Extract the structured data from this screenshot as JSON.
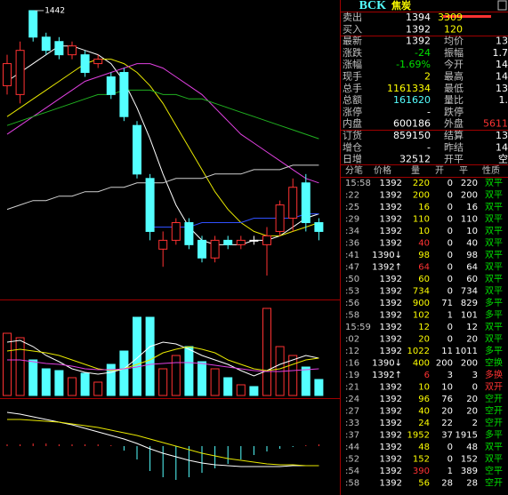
{
  "header": {
    "symbol": "BCK",
    "name": "焦炭"
  },
  "quote": {
    "rows": [
      {
        "label": "卖出",
        "value": 1394,
        "value2": 3309
      },
      {
        "label": "买入",
        "value": 1392,
        "value2": 120
      },
      {
        "label": "最新",
        "value": 1392,
        "label2": "均价",
        "value2": "13"
      },
      {
        "label": "涨跌",
        "value": -24,
        "label2": "振幅",
        "value2": "1.7"
      },
      {
        "label": "涨幅",
        "value": "-1.69%",
        "label2": "今开",
        "value2": "14"
      },
      {
        "label": "现手",
        "value": 2,
        "label2": "最高",
        "value2": "14"
      },
      {
        "label": "总手",
        "value": 1161334,
        "label2": "最低",
        "value2": "13"
      },
      {
        "label": "总额",
        "value": 161620,
        "label2": "量比",
        "value2": "1."
      },
      {
        "label": "涨停",
        "value": "-",
        "label2": "跌停"
      },
      {
        "label": "内盘",
        "value": 600186,
        "label2": "外盘",
        "value2": "5611"
      },
      {
        "label": "订货",
        "value": 859150,
        "label2": "结算",
        "value2": "13"
      },
      {
        "label": "增仓",
        "value": "-",
        "label2": "昨结",
        "value2": "14"
      },
      {
        "label": "日增",
        "value": 32512,
        "label2": "开平",
        "value2": "空"
      }
    ]
  },
  "ticks": {
    "columns": [
      "分笔",
      "价格",
      "量",
      "开",
      "平",
      "性质"
    ],
    "rows": [
      [
        "15:58",
        1392,
        220,
        0,
        220,
        "双平"
      ],
      [
        ":22",
        1392,
        200,
        0,
        200,
        "双平"
      ],
      [
        ":25",
        1392,
        16,
        0,
        16,
        "双平"
      ],
      [
        ":29",
        1392,
        110,
        0,
        110,
        "双平"
      ],
      [
        ":34",
        1392,
        10,
        0,
        10,
        "双平"
      ],
      [
        ":36",
        1392,
        40,
        0,
        40,
        "双平"
      ],
      [
        ":41",
        "1390↓",
        98,
        0,
        98,
        "双平"
      ],
      [
        ":47",
        "1392↑",
        64,
        0,
        64,
        "双平"
      ],
      [
        ":50",
        1392,
        60,
        0,
        60,
        "双平"
      ],
      [
        ":53",
        1392,
        734,
        0,
        734,
        "双平"
      ],
      [
        ":56",
        1392,
        900,
        71,
        829,
        "多平"
      ],
      [
        ":58",
        1392,
        102,
        1,
        101,
        "多平"
      ],
      [
        "15:59",
        1392,
        12,
        0,
        12,
        "双平"
      ],
      [
        ":02",
        1392,
        20,
        0,
        20,
        "双平"
      ],
      [
        ":12",
        1392,
        1022,
        11,
        1011,
        "多平"
      ],
      [
        ":16",
        "1390↓",
        400,
        200,
        200,
        "空换"
      ],
      [
        ":19",
        "1392↑",
        6,
        3,
        3,
        "多换"
      ],
      [
        ":21",
        1392,
        10,
        10,
        0,
        "双开"
      ],
      [
        ":24",
        1392,
        96,
        76,
        20,
        "空开"
      ],
      [
        ":27",
        1392,
        40,
        20,
        20,
        "空开"
      ],
      [
        ":33",
        1392,
        24,
        22,
        2,
        "空开"
      ],
      [
        ":37",
        1392,
        1952,
        37,
        1915,
        "多平"
      ],
      [
        ":44",
        1392,
        48,
        0,
        48,
        "双平"
      ],
      [
        ":52",
        1392,
        152,
        0,
        152,
        "双平"
      ],
      [
        ":54",
        1392,
        390,
        1,
        389,
        "空平"
      ],
      [
        ":58",
        1392,
        56,
        28,
        28,
        "空开"
      ]
    ]
  },
  "chart_data": [
    {
      "type": "candlestick",
      "ylim": [
        1377,
        1444
      ],
      "up_color": "#ff3232",
      "down_color": "#54ffff",
      "high_label": 1442,
      "open": [
        1425,
        1423,
        1442,
        1436,
        1435,
        1432,
        1432,
        1430,
        1427,
        1428,
        1416,
        1404,
        1388,
        1390,
        1394,
        1390,
        1386,
        1390,
        1389,
        1390,
        1389,
        1392,
        1395,
        1403,
        1394
      ],
      "high": [
        1432,
        1435,
        1442,
        1437,
        1436,
        1435,
        1433,
        1432,
        1428,
        1429,
        1417,
        1405,
        1392,
        1395,
        1395,
        1391,
        1391,
        1391,
        1391,
        1391,
        1393,
        1399,
        1404,
        1405,
        1395
      ],
      "low": [
        1423,
        1421,
        1435,
        1432,
        1431,
        1431,
        1427,
        1429,
        1422,
        1417,
        1404,
        1390,
        1384,
        1389,
        1388,
        1385,
        1385,
        1388,
        1388,
        1389,
        1382,
        1391,
        1392,
        1392,
        1390
      ],
      "close": [
        1430,
        1433,
        1436,
        1433,
        1432,
        1434,
        1428,
        1431,
        1423,
        1418,
        1405,
        1392,
        1390,
        1394,
        1389,
        1386,
        1390,
        1389,
        1390,
        1390,
        1391,
        1398,
        1402,
        1394,
        1392
      ],
      "lines": [
        {
          "color": "#ffffff",
          "values": [
            1426,
            1428,
            1430,
            1432,
            1434,
            1434,
            1433,
            1432,
            1430,
            1426,
            1420,
            1413,
            1405,
            1398,
            1393,
            1390,
            1389,
            1389,
            1389,
            1390,
            1390,
            1391,
            1393,
            1395,
            1396
          ]
        },
        {
          "color": "#e8e800",
          "values": [
            1418,
            1420,
            1422,
            1424,
            1426,
            1428,
            1430,
            1431,
            1431,
            1430,
            1428,
            1425,
            1421,
            1416,
            1411,
            1406,
            1401,
            1397,
            1394,
            1392,
            1391,
            1391,
            1392,
            1393,
            1394
          ]
        },
        {
          "color": "#e040e0",
          "values": [
            1414,
            1416,
            1418,
            1420,
            1422,
            1424,
            1426,
            1427,
            1428,
            1429,
            1430,
            1430,
            1429,
            1427,
            1425,
            1423,
            1420,
            1417,
            1414,
            1412,
            1410,
            1408,
            1406,
            1404,
            1403
          ]
        },
        {
          "color": "#20b020",
          "values": [
            1416,
            1417,
            1418,
            1419,
            1420,
            1421,
            1422,
            1423,
            1423,
            1424,
            1424,
            1424,
            1423,
            1423,
            1422,
            1422,
            1421,
            1420,
            1419,
            1418,
            1417,
            1416,
            1415,
            1414,
            1413
          ]
        },
        {
          "color": "#d0d0d0",
          "values": [
            1397,
            1398,
            1399,
            1399,
            1400,
            1400,
            1401,
            1401,
            1402,
            1402,
            1403,
            1403,
            1403,
            1404,
            1404,
            1404,
            1405,
            1405,
            1405,
            1406,
            1406,
            1406,
            1407,
            1407,
            1407
          ]
        },
        {
          "color": "#3050ff",
          "values": [
            null,
            null,
            null,
            null,
            null,
            null,
            null,
            null,
            null,
            null,
            null,
            1393,
            1393,
            1393,
            1393,
            1394,
            1394,
            1394,
            1394,
            1395,
            1395,
            1395,
            1395,
            1396,
            1396
          ]
        }
      ]
    },
    {
      "type": "volume",
      "ylim": [
        0,
        100
      ],
      "values": [
        70,
        65,
        40,
        30,
        28,
        20,
        25,
        15,
        35,
        50,
        88,
        88,
        30,
        45,
        55,
        38,
        30,
        20,
        12,
        10,
        98,
        55,
        45,
        32,
        18
      ],
      "lines": [
        {
          "color": "#ffffff",
          "values": [
            60,
            62,
            55,
            45,
            38,
            30,
            26,
            24,
            26,
            30,
            42,
            55,
            60,
            58,
            52,
            45,
            40,
            35,
            28,
            22,
            28,
            35,
            40,
            45,
            42
          ]
        },
        {
          "color": "#e8e800",
          "values": [
            50,
            52,
            50,
            48,
            45,
            40,
            35,
            30,
            28,
            30,
            35,
            40,
            48,
            52,
            55,
            52,
            48,
            40,
            35,
            30,
            28,
            30,
            35,
            40,
            42
          ]
        },
        {
          "color": "#e040e0",
          "values": [
            40,
            40,
            38,
            36,
            35,
            33,
            30,
            29,
            29,
            30,
            32,
            35,
            36,
            37,
            37,
            36,
            34,
            32,
            30,
            28,
            27,
            27,
            28,
            29,
            30
          ]
        }
      ]
    },
    {
      "type": "macd",
      "ylim": [
        -50,
        50
      ],
      "up_color": "#ff3232",
      "down_color": "#54ffff",
      "values": [
        2,
        2,
        3,
        3,
        2,
        2,
        2,
        2,
        1,
        -5,
        -15,
        -28,
        -35,
        -38,
        -35,
        -30,
        -25,
        -20,
        -15,
        -10,
        -6,
        -3,
        -1,
        1,
        2
      ],
      "lines": [
        {
          "color": "#ffffff",
          "values": [
            38,
            36,
            33,
            30,
            27,
            24,
            20,
            16,
            12,
            8,
            3,
            -3,
            -8,
            -12,
            -16,
            -19,
            -21,
            -22,
            -23,
            -23,
            -23,
            -23,
            -22,
            -22,
            -22
          ]
        },
        {
          "color": "#e8e800",
          "values": [
            30,
            30,
            29,
            28,
            27,
            25,
            23,
            21,
            18,
            15,
            12,
            8,
            4,
            0,
            -4,
            -8,
            -11,
            -14,
            -16,
            -18,
            -20,
            -21,
            -21,
            -22,
            -22
          ]
        }
      ]
    }
  ]
}
